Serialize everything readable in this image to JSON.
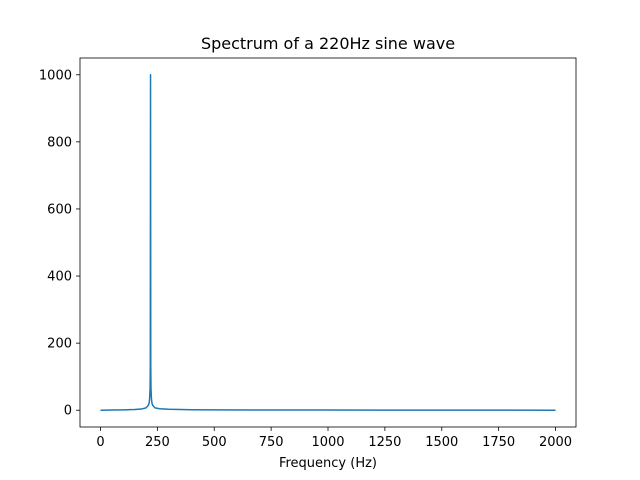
{
  "chart_data": {
    "type": "line",
    "title": "Spectrum of a 220Hz sine wave",
    "xlabel": "Frequency (Hz)",
    "ylabel": "",
    "xlim": [
      -90,
      2090
    ],
    "ylim": [
      -50,
      1050
    ],
    "xticks": [
      0,
      250,
      500,
      750,
      1000,
      1250,
      1500,
      1750,
      2000
    ],
    "yticks": [
      0,
      200,
      400,
      600,
      800,
      1000
    ],
    "grid": false,
    "legend": "none",
    "series": [
      {
        "color": "#1f77b4",
        "x": [
          0,
          50,
          100,
          150,
          180,
          200,
          210,
          214,
          216,
          218,
          219,
          220,
          221,
          222,
          224,
          226,
          230,
          240,
          260,
          300,
          400,
          500,
          750,
          1000,
          1250,
          1500,
          1750,
          2000
        ],
        "y": [
          0,
          0.5,
          1,
          2,
          3.5,
          7,
          14,
          22,
          35,
          65,
          130,
          1000,
          130,
          65,
          35,
          22,
          14,
          7,
          4.5,
          3,
          1.5,
          1,
          0.6,
          0.5,
          0.4,
          0.3,
          0.2,
          0.1
        ]
      }
    ]
  }
}
